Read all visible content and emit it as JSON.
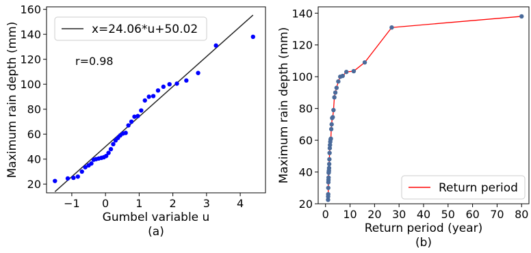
{
  "chart_data": [
    {
      "type": "scatter",
      "panel_label": "(a)",
      "xlabel": "Gumbel variable u",
      "ylabel": "Maximum rain depth (mm)",
      "xlim": [
        -1.75,
        4.75
      ],
      "ylim": [
        13,
        162
      ],
      "x_ticks": [
        -1,
        0,
        1,
        2,
        3,
        4
      ],
      "y_ticks": [
        20,
        40,
        60,
        80,
        100,
        120,
        140,
        160
      ],
      "grid": false,
      "legend_position": "top-left",
      "annotation": "r=0.98",
      "fit_line": {
        "name": "x=24.06*u+50.02",
        "slope": 24.06,
        "intercept": 50.02,
        "x_range": [
          -1.5,
          4.38
        ],
        "color": "#222222"
      },
      "series": [
        {
          "color": "#0000ff",
          "x": [
            -1.5,
            -1.12,
            -0.95,
            -0.82,
            -0.7,
            -0.6,
            -0.5,
            -0.42,
            -0.35,
            -0.28,
            -0.2,
            -0.12,
            -0.05,
            0.02,
            0.09,
            0.16,
            0.23,
            0.3,
            0.37,
            0.44,
            0.52,
            0.6,
            0.68,
            0.77,
            0.86,
            0.96,
            1.06,
            1.17,
            1.29,
            1.42,
            1.56,
            1.72,
            1.9,
            2.12,
            2.4,
            2.75,
            3.28,
            4.38
          ],
          "y": [
            22.5,
            24.5,
            25,
            26,
            30,
            33.5,
            35,
            36.5,
            39.5,
            40,
            40.5,
            41,
            41.5,
            42.5,
            45,
            48,
            52,
            55,
            57,
            59,
            60.5,
            61,
            67,
            70,
            74,
            74.5,
            79,
            87,
            90,
            90.5,
            95,
            98,
            100,
            100.5,
            103,
            109,
            131,
            138
          ]
        }
      ]
    },
    {
      "type": "line",
      "panel_label": "(b)",
      "xlabel": "Return period (year)",
      "ylabel": "Maximum rain depth (mm)",
      "xlim": [
        -3,
        83
      ],
      "ylim": [
        20,
        144
      ],
      "x_ticks": [
        0,
        10,
        20,
        30,
        40,
        50,
        60,
        70,
        80
      ],
      "y_ticks": [
        20,
        40,
        60,
        80,
        100,
        120,
        140
      ],
      "grid": false,
      "legend_position": "bottom-right",
      "series": [
        {
          "name": "Return period",
          "line_color": "#ff0000",
          "marker_color": "#4a6a9a",
          "x": [
            1.03,
            1.06,
            1.09,
            1.12,
            1.16,
            1.2,
            1.24,
            1.28,
            1.33,
            1.38,
            1.44,
            1.5,
            1.57,
            1.65,
            1.73,
            1.82,
            1.93,
            2.05,
            2.18,
            2.33,
            2.5,
            2.7,
            2.95,
            3.25,
            3.6,
            4.0,
            4.5,
            5.2,
            6.0,
            7.0,
            8.5,
            11.5,
            16.0,
            27.0,
            80.0
          ],
          "y": [
            22.5,
            24.5,
            26,
            30,
            33.5,
            35,
            36.5,
            39.5,
            40,
            41,
            42.5,
            45,
            48,
            52,
            55,
            57,
            59,
            60.5,
            61,
            67,
            70,
            74,
            74.5,
            79,
            87,
            90,
            93,
            97,
            100,
            100.5,
            103,
            103.5,
            109,
            131,
            138
          ]
        }
      ]
    }
  ]
}
